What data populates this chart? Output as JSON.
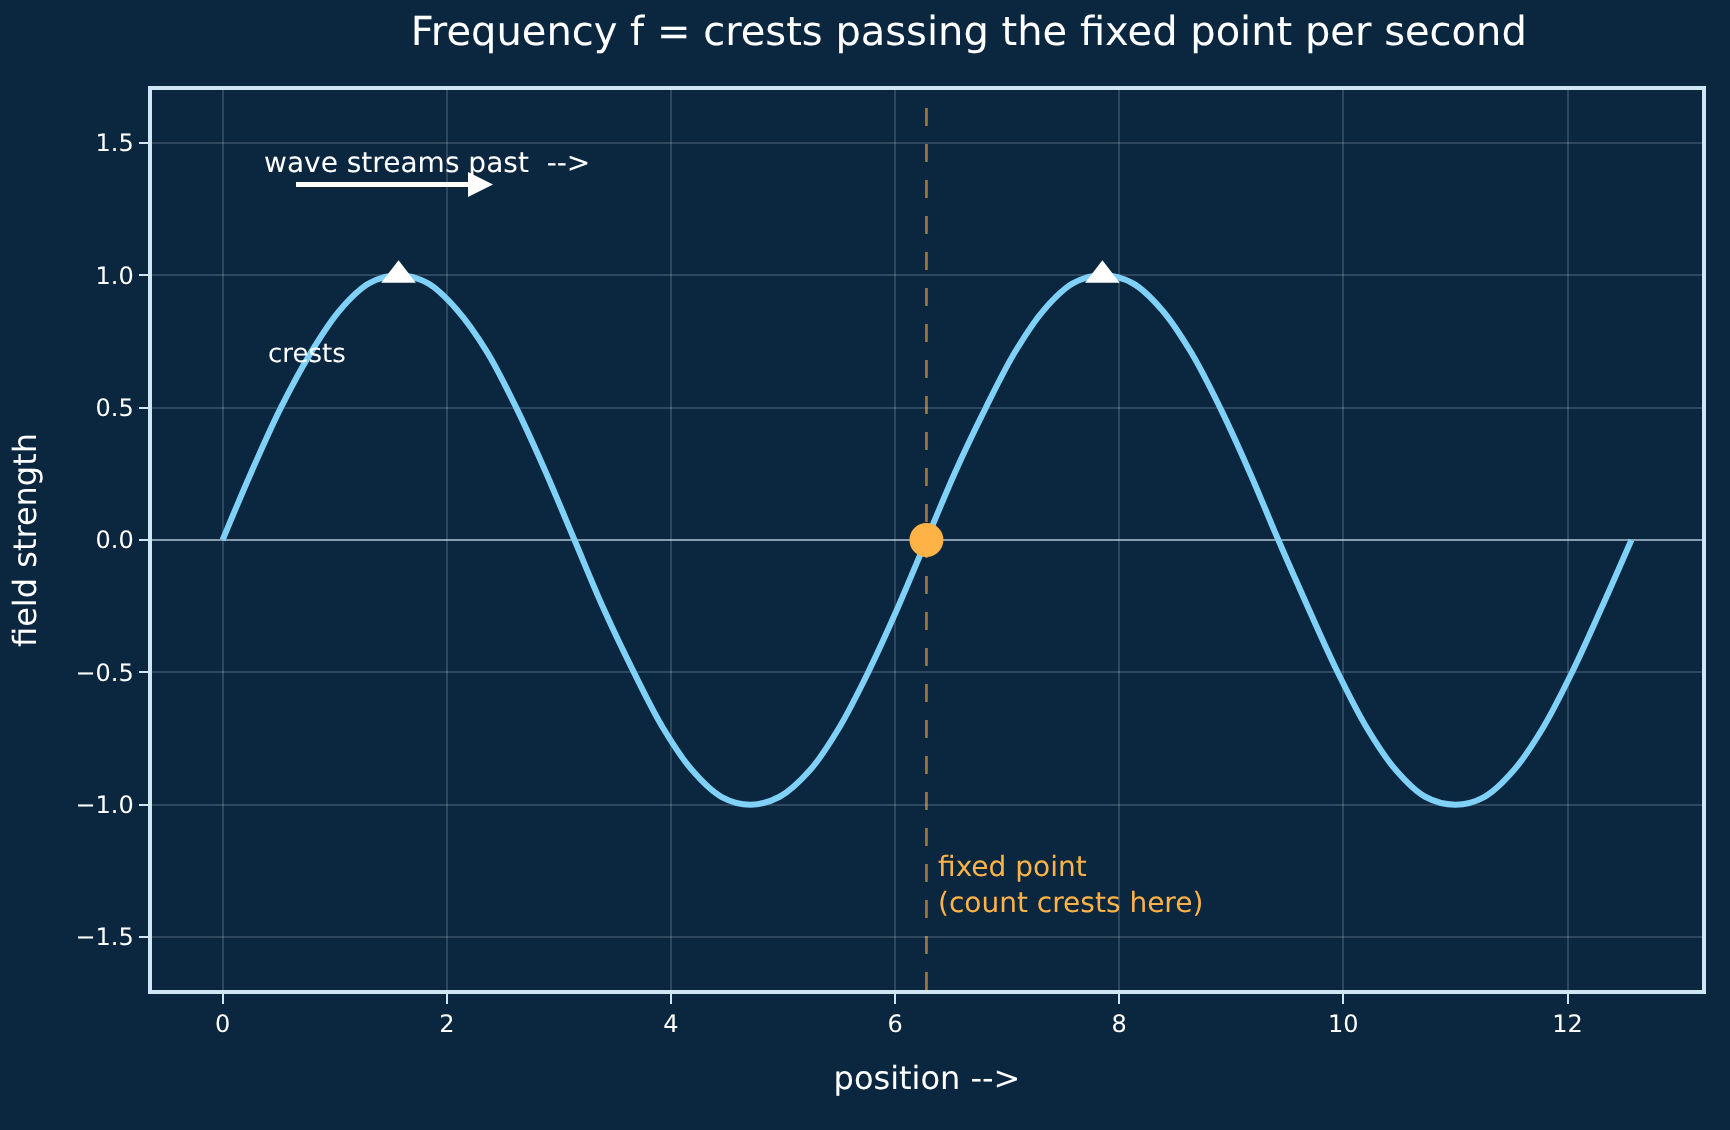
{
  "chart_data": {
    "type": "line",
    "title": "Frequency f = crests passing the fixed point per second",
    "xlabel": "position -->",
    "ylabel": "field strength",
    "series": [
      {
        "color": "#7fd1f8",
        "marker": "none",
        "line_style": "solid",
        "x": [
          0,
          0.26,
          0.52,
          0.79,
          1.05,
          1.31,
          1.57,
          1.83,
          2.09,
          2.36,
          2.62,
          2.88,
          3.14,
          3.4,
          3.67,
          3.93,
          4.19,
          4.45,
          4.71,
          4.97,
          5.24,
          5.5,
          5.76,
          6.02,
          6.28,
          6.54,
          6.81,
          7.07,
          7.33,
          7.59,
          7.85,
          8.12,
          8.38,
          8.64,
          8.9,
          9.16,
          9.42,
          9.69,
          9.95,
          10.21,
          10.47,
          10.73,
          11.0,
          11.26,
          11.52,
          11.78,
          12.04,
          12.3,
          12.57
        ],
        "values": [
          0,
          0.26,
          0.5,
          0.71,
          0.87,
          0.97,
          1,
          0.97,
          0.87,
          0.71,
          0.5,
          0.26,
          0,
          -0.26,
          -0.5,
          -0.71,
          -0.87,
          -0.97,
          -1,
          -0.97,
          -0.87,
          -0.71,
          -0.5,
          -0.26,
          0,
          0.26,
          0.5,
          0.71,
          0.87,
          0.97,
          1,
          0.97,
          0.87,
          0.71,
          0.5,
          0.26,
          0,
          -0.26,
          -0.5,
          -0.71,
          -0.87,
          -0.97,
          -1,
          -0.97,
          -0.87,
          -0.71,
          -0.5,
          -0.26,
          0
        ]
      },
      {
        "type": "scatter",
        "color": "#ffffff",
        "marker": "triangle",
        "x": [
          1.57,
          7.85
        ],
        "values": [
          1,
          1
        ]
      },
      {
        "type": "scatter",
        "color": "#ffb347",
        "marker": "circle",
        "x": [
          6.28
        ],
        "values": [
          0
        ]
      }
    ],
    "xlim": [
      -0.63,
      13.2
    ],
    "ylim": [
      -1.7,
      1.7
    ],
    "xticks": [
      0,
      2,
      4,
      6,
      8,
      10,
      12
    ],
    "yticks": [
      {
        "value": -1.5,
        "label": "−1.5"
      },
      {
        "value": -1,
        "label": "−1.0"
      },
      {
        "value": -0.5,
        "label": "−0.5"
      },
      {
        "value": 0,
        "label": "0.0"
      },
      {
        "value": 0.5,
        "label": "0.5"
      },
      {
        "value": 1,
        "label": "1.0"
      },
      {
        "value": 1.5,
        "label": "1.5"
      }
    ],
    "ref_lines": [
      {
        "axis": "x",
        "value": 6.28,
        "label": "fixed point\n(count crests here)",
        "color": "#ffb347",
        "line_style": "dashed"
      },
      {
        "axis": "y",
        "value": 0,
        "label": null,
        "color": "#9fb6c8",
        "line_style": "solid"
      }
    ],
    "annotations": [
      "wave streams past  -->",
      {
        "text": "crests",
        "x": 0.75,
        "y": 0.7
      }
    ],
    "grid": true
  }
}
